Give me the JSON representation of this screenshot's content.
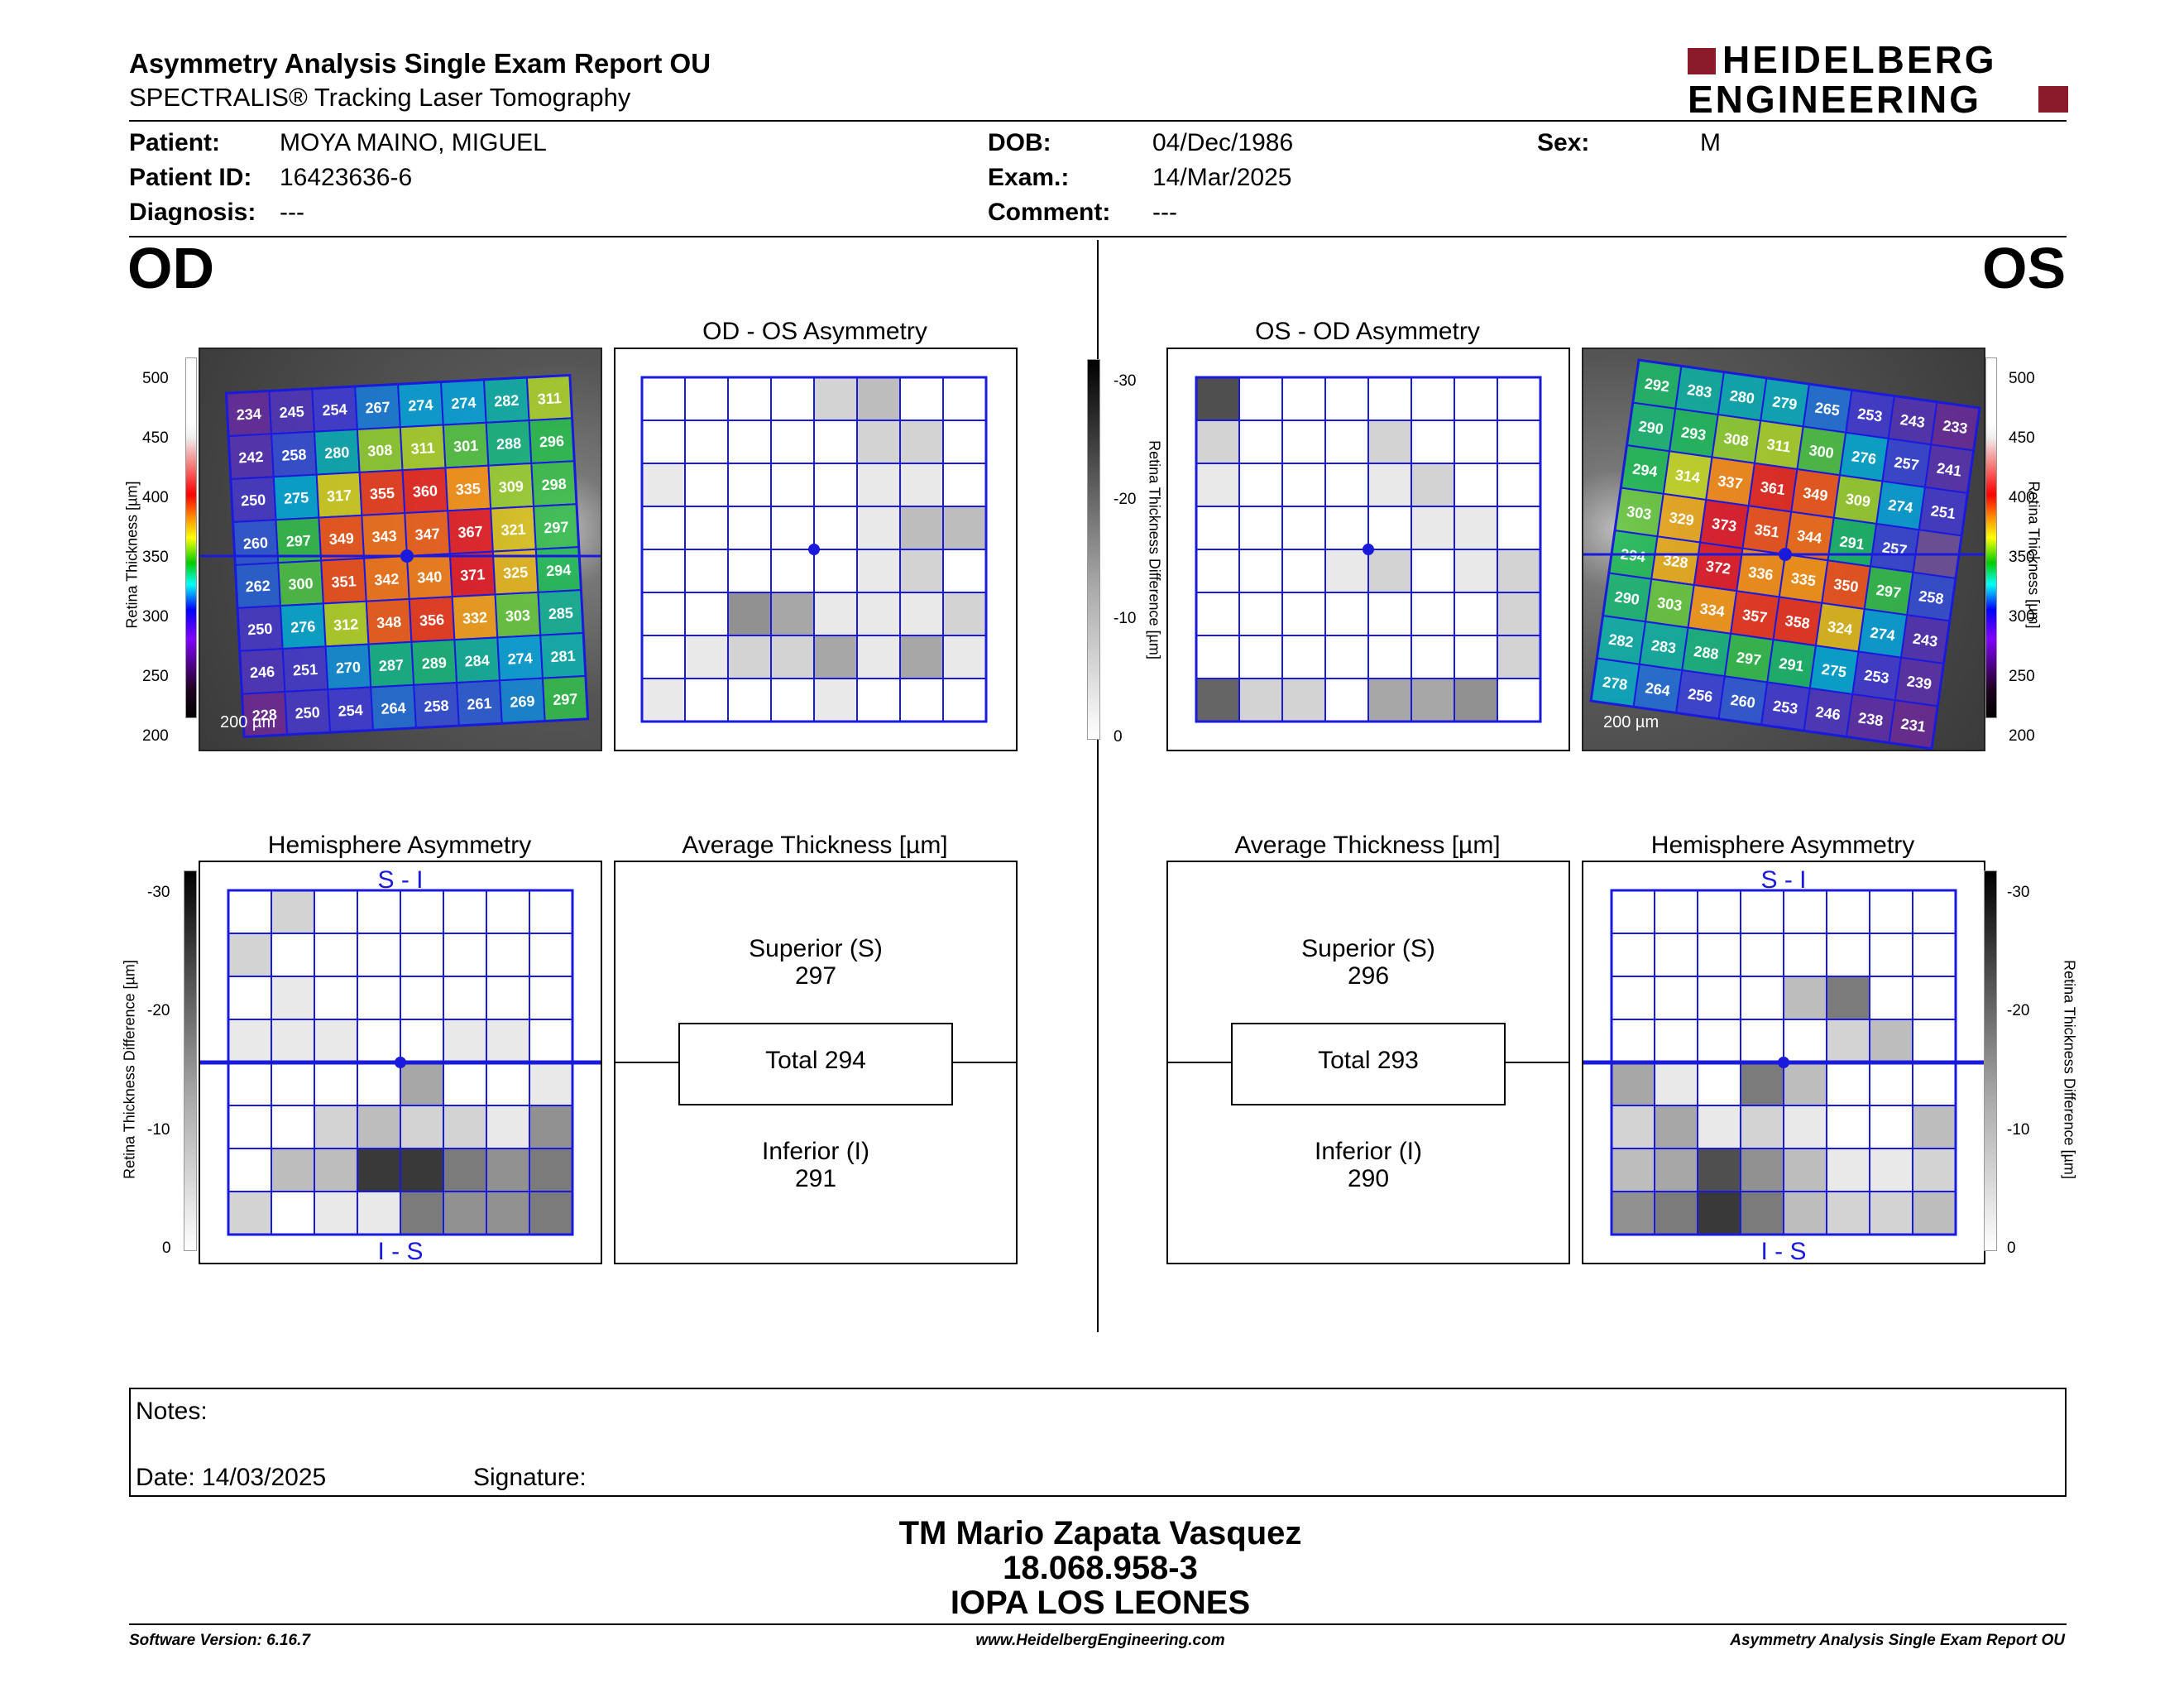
{
  "header": {
    "report_title": "Asymmetry Analysis Single Exam Report OU",
    "subtitle": "SPECTRALIS® Tracking Laser Tomography",
    "logo_line1": "HEIDELBERG",
    "logo_line2": "ENGINEERING"
  },
  "patient": {
    "patient_label": "Patient:",
    "patient_value": "MOYA MAINO, MIGUEL",
    "id_label": "Patient ID:",
    "id_value": "16423636-6",
    "diag_label": "Diagnosis:",
    "diag_value": "---",
    "dob_label": "DOB:",
    "dob_value": "04/Dec/1986",
    "exam_label": "Exam.:",
    "exam_value": "14/Mar/2025",
    "comment_label": "Comment:",
    "comment_value": "---",
    "sex_label": "Sex:",
    "sex_value": "M"
  },
  "od": {
    "eye_label": "OD",
    "asym_title": "OD - OS Asymmetry",
    "hemi_title": "Hemisphere Asymmetry",
    "avg_title": "Average Thickness [µm]",
    "superior_label": "Superior (S)",
    "superior_value": "297",
    "total_label": "Total 294",
    "inferior_label": "Inferior (I)",
    "inferior_value": "291",
    "scale_bar": "200 µm",
    "grid_values": [
      [
        "234",
        "245",
        "254",
        "267",
        "274",
        "274",
        "282",
        "311"
      ],
      [
        "242",
        "258",
        "280",
        "308",
        "311",
        "301",
        "288",
        "296"
      ],
      [
        "250",
        "275",
        "317",
        "355",
        "360",
        "335",
        "309",
        "298"
      ],
      [
        "260",
        "297",
        "349",
        "343",
        "347",
        "367",
        "321",
        "297"
      ],
      [
        "262",
        "300",
        "351",
        "342",
        "340",
        "371",
        "325",
        "294"
      ],
      [
        "250",
        "276",
        "312",
        "348",
        "356",
        "332",
        "303",
        "285"
      ],
      [
        "246",
        "251",
        "270",
        "287",
        "289",
        "284",
        "274",
        "281"
      ],
      [
        "228",
        "250",
        "254",
        "264",
        "258",
        "261",
        "269",
        "297"
      ]
    ],
    "asym_shades": [
      [
        0,
        0,
        0,
        0,
        2,
        3,
        0,
        0
      ],
      [
        0,
        0,
        0,
        0,
        0,
        2,
        2,
        0
      ],
      [
        1,
        0,
        0,
        0,
        0,
        1,
        1,
        0
      ],
      [
        0,
        0,
        0,
        0,
        0,
        1,
        3,
        3
      ],
      [
        0,
        0,
        0,
        0,
        0,
        1,
        2,
        0
      ],
      [
        0,
        0,
        5,
        4,
        1,
        1,
        1,
        2
      ],
      [
        0,
        1,
        2,
        2,
        4,
        1,
        4,
        1
      ],
      [
        1,
        0,
        0,
        0,
        1,
        0,
        0,
        0
      ]
    ],
    "hemi_shades": [
      [
        0,
        2,
        0,
        0,
        0,
        0,
        0,
        0
      ],
      [
        2,
        0,
        0,
        0,
        0,
        0,
        0,
        0
      ],
      [
        0,
        1,
        0,
        0,
        0,
        0,
        0,
        0
      ],
      [
        1,
        1,
        1,
        0,
        0,
        1,
        1,
        0
      ],
      [
        0,
        0,
        0,
        0,
        4,
        0,
        0,
        1
      ],
      [
        0,
        0,
        2,
        3,
        2,
        2,
        1,
        5
      ],
      [
        0,
        3,
        3,
        9,
        9,
        6,
        5,
        6
      ],
      [
        2,
        0,
        1,
        1,
        6,
        5,
        5,
        6
      ]
    ]
  },
  "os": {
    "eye_label": "OS",
    "asym_title": "OS - OD Asymmetry",
    "hemi_title": "Hemisphere Asymmetry",
    "avg_title": "Average Thickness [µm]",
    "superior_label": "Superior (S)",
    "superior_value": "296",
    "total_label": "Total 293",
    "inferior_label": "Inferior (I)",
    "inferior_value": "290",
    "scale_bar": "200 µm",
    "grid_values": [
      [
        "292",
        "283",
        "280",
        "279",
        "265",
        "253",
        "243",
        "233"
      ],
      [
        "290",
        "293",
        "308",
        "311",
        "300",
        "276",
        "257",
        "241"
      ],
      [
        "294",
        "314",
        "337",
        "361",
        "349",
        "309",
        "274",
        "251"
      ],
      [
        "303",
        "329",
        "373",
        "351",
        "344",
        "291",
        "257",
        ""
      ],
      [
        "294",
        "328",
        "372",
        "336",
        "335",
        "350",
        "297",
        "258"
      ],
      [
        "290",
        "303",
        "334",
        "357",
        "358",
        "324",
        "274",
        "243"
      ],
      [
        "282",
        "283",
        "288",
        "297",
        "291",
        "275",
        "253",
        "239"
      ],
      [
        "278",
        "264",
        "256",
        "260",
        "253",
        "246",
        "238",
        "231"
      ]
    ],
    "asym_shades": [
      [
        8,
        0,
        0,
        0,
        0,
        0,
        0,
        0
      ],
      [
        2,
        0,
        0,
        0,
        2,
        0,
        0,
        0
      ],
      [
        1,
        0,
        0,
        0,
        1,
        2,
        0,
        0
      ],
      [
        0,
        0,
        0,
        0,
        0,
        1,
        1,
        0
      ],
      [
        0,
        0,
        0,
        1,
        2,
        0,
        1,
        2
      ],
      [
        0,
        0,
        0,
        0,
        0,
        0,
        0,
        2
      ],
      [
        0,
        0,
        0,
        0,
        0,
        0,
        0,
        2
      ],
      [
        7,
        2,
        2,
        0,
        4,
        4,
        5,
        0
      ]
    ],
    "hemi_shades": [
      [
        0,
        0,
        0,
        0,
        0,
        0,
        0,
        0
      ],
      [
        0,
        0,
        0,
        0,
        0,
        0,
        0,
        0
      ],
      [
        0,
        0,
        0,
        0,
        3,
        6,
        0,
        0
      ],
      [
        0,
        0,
        0,
        0,
        0,
        2,
        3,
        0
      ],
      [
        4,
        1,
        0,
        6,
        3,
        0,
        0,
        0
      ],
      [
        2,
        4,
        1,
        2,
        1,
        0,
        0,
        3
      ],
      [
        3,
        4,
        8,
        5,
        3,
        1,
        1,
        2
      ],
      [
        5,
        6,
        9,
        6,
        3,
        2,
        2,
        3
      ]
    ]
  },
  "scales": {
    "thickness_label": "Retina Thickness [µm]",
    "thickness_ticks": [
      "500",
      "450",
      "400",
      "350",
      "300",
      "250",
      "200"
    ],
    "difference_label": "Retina Thickness Difference [µm]",
    "difference_ticks": [
      "-30",
      "-20",
      "-10",
      "0"
    ],
    "hemi_top": "S - I",
    "hemi_bottom": "I - S"
  },
  "notes": {
    "notes_label": "Notes:",
    "date_text": "Date: 14/03/2025",
    "signature_label": "Signature:"
  },
  "signature_block": {
    "line1": "TM Mario Zapata Vasquez",
    "line2": "18.068.958-3",
    "line3": "IOPA LOS LEONES"
  },
  "footer": {
    "software": "Software Version: 6.16.7",
    "website": "www.HeidelbergEngineering.com",
    "report": "Asymmetry Analysis Single Exam Report OU"
  },
  "colors": {
    "grid_blue": "#1a1adc",
    "logo_red": "#8b1a2b"
  }
}
